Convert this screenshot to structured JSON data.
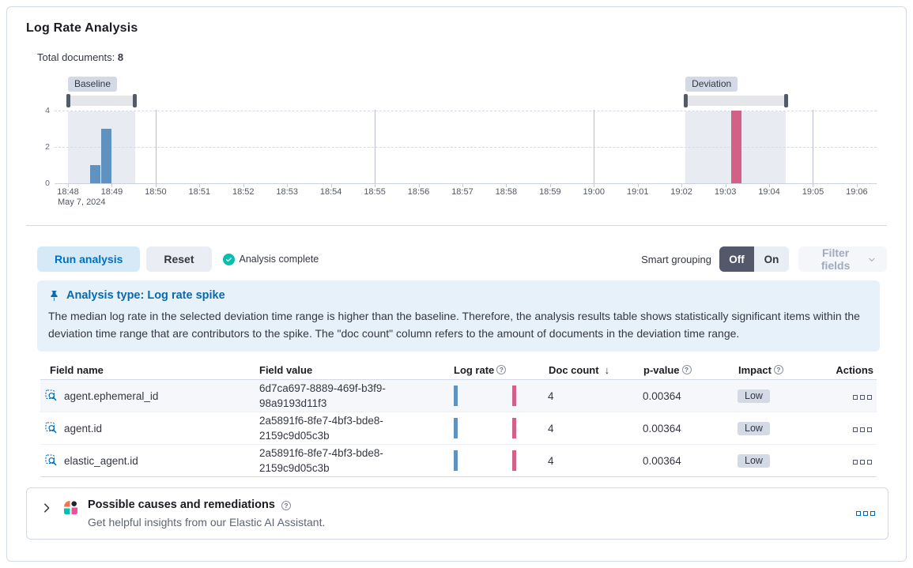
{
  "page": {
    "title": "Log Rate Analysis",
    "total_documents_label": "Total documents:",
    "total_documents_value": "8"
  },
  "chart_data": {
    "type": "bar",
    "x_axis": {
      "tick_labels": [
        "18:48",
        "18:49",
        "18:50",
        "18:51",
        "18:52",
        "18:53",
        "18:54",
        "18:55",
        "18:56",
        "18:57",
        "18:58",
        "18:59",
        "19:00",
        "19:01",
        "19:02",
        "19:03",
        "19:04",
        "19:05",
        "19:06"
      ],
      "date_label": "May 7, 2024",
      "major_gridline_tick_indexes": [
        2,
        7,
        12,
        17
      ]
    },
    "y_axis": {
      "tick_values": [
        0,
        2,
        4
      ],
      "max": 4
    },
    "series": [
      {
        "name": "baseline",
        "color": "#6092C0",
        "points": [
          {
            "time": "18:48:40",
            "minute_offset": 0.62,
            "doc_count": 1
          },
          {
            "time": "18:48:55",
            "minute_offset": 0.88,
            "doc_count": 3
          }
        ]
      },
      {
        "name": "deviation",
        "color": "#D36086",
        "points": [
          {
            "time": "19:03:10",
            "minute_offset": 15.25,
            "doc_count": 4
          }
        ]
      }
    ],
    "brushes": {
      "baseline": {
        "label": "Baseline",
        "from_minute": 0.0,
        "to_minute": 1.53
      },
      "deviation": {
        "label": "Deviation",
        "from_minute": 14.09,
        "to_minute": 16.38
      }
    }
  },
  "toolbar": {
    "run_button": "Run analysis",
    "reset_button": "Reset",
    "status_text": "Analysis complete",
    "smart_grouping_label": "Smart grouping",
    "group_off_label": "Off",
    "group_on_label": "On",
    "filter_fields_label": "Filter fields"
  },
  "callout": {
    "title": "Analysis type: Log rate spike",
    "body": "The median log rate in the selected deviation time range is higher than the baseline. Therefore, the analysis results table shows statistically significant items within the deviation time range that are contributors to the spike. The \"doc count\" column refers to the amount of documents in the deviation time range."
  },
  "table": {
    "columns": [
      {
        "label": "Field name"
      },
      {
        "label": "Field value"
      },
      {
        "label": "Log rate",
        "info": true
      },
      {
        "label": "Doc count",
        "sorted": "desc"
      },
      {
        "label": "p-value",
        "info": true
      },
      {
        "label": "Impact",
        "info": true
      },
      {
        "label": "Actions",
        "align": "right"
      }
    ],
    "rows": [
      {
        "field_name": "agent.ephemeral_id",
        "field_value": "6d7ca697-8889-469f-b3f9-98a9193d11f3",
        "doc_count": "4",
        "p_value": "0.00364",
        "impact": "Low",
        "shaded": true
      },
      {
        "field_name": "agent.id",
        "field_value": "2a5891f6-8fe7-4bf3-bde8-2159c9d05c3b",
        "doc_count": "4",
        "p_value": "0.00364",
        "impact": "Low",
        "shaded": false
      },
      {
        "field_name": "elastic_agent.id",
        "field_value": "2a5891f6-8fe7-4bf3-bde8-2159c9d05c3b",
        "doc_count": "4",
        "p_value": "0.00364",
        "impact": "Low",
        "shaded": false
      }
    ]
  },
  "ai_panel": {
    "title": "Possible causes and remediations",
    "subtitle": "Get helpful insights from our Elastic AI Assistant."
  },
  "colors": {
    "baseline_bar": "#6092C0",
    "deviation_bar": "#D36086",
    "brush_region": "#E8EBF2",
    "accent_blue": "#0071C2",
    "success_green": "#00BFB3"
  }
}
